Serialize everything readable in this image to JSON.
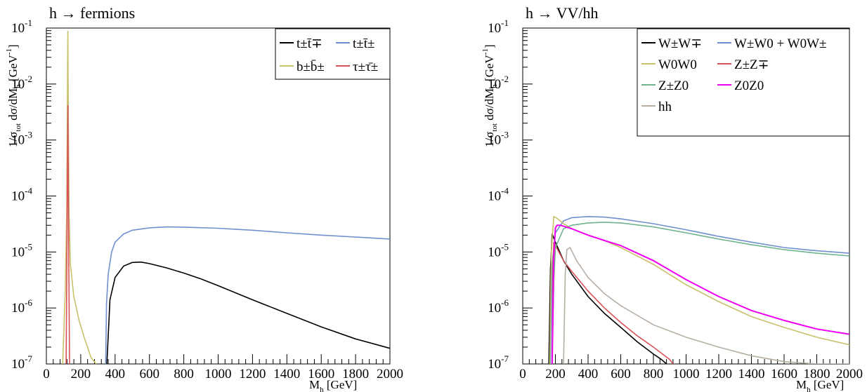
{
  "chart_data": [
    {
      "type": "line",
      "title": "h → fermions",
      "xlabel": "M_h [GeV]",
      "ylabel": "1/σ_tot dσ/dM_h [GeV^-1]",
      "xlim": [
        0,
        2000
      ],
      "ylim": [
        1e-07,
        0.1
      ],
      "yscale": "log",
      "grid": false,
      "legend_position": "top-right",
      "x_ticks": [
        "0",
        "200",
        "400",
        "600",
        "800",
        "1000",
        "1200",
        "1400",
        "1600",
        "1800",
        "2000"
      ],
      "y_ticks": [
        {
          "base": "10",
          "exp": "-7"
        },
        {
          "base": "10",
          "exp": "-6"
        },
        {
          "base": "10",
          "exp": "-5"
        },
        {
          "base": "10",
          "exp": "-4"
        },
        {
          "base": "10",
          "exp": "-3"
        },
        {
          "base": "10",
          "exp": "-2"
        },
        {
          "base": "10",
          "exp": "-1"
        }
      ],
      "series": [
        {
          "name": "t±t̄∓",
          "color": "#000000",
          "x": [
            352,
            370,
            400,
            450,
            500,
            550,
            600,
            700,
            800,
            900,
            1000,
            1200,
            1400,
            1600,
            1800,
            1950,
            2000
          ],
          "y": [
            1e-07,
            1.4e-06,
            3.5e-06,
            5.6e-06,
            6.5e-06,
            6.6e-06,
            6.2e-06,
            5.2e-06,
            4.2e-06,
            3.3e-06,
            2.5e-06,
            1.4e-06,
            8e-07,
            4.6e-07,
            2.8e-07,
            2.1e-07,
            1.9e-07
          ]
        },
        {
          "name": "t±t̄±",
          "color": "#6f8fcf",
          "x": [
            345,
            350,
            360,
            380,
            400,
            450,
            500,
            600,
            700,
            800,
            1000,
            1200,
            1400,
            1600,
            1800,
            2000
          ],
          "y": [
            1e-07,
            1.2e-06,
            4e-06,
            1e-05,
            1.5e-05,
            2.1e-05,
            2.45e-05,
            2.7e-05,
            2.8e-05,
            2.78e-05,
            2.65e-05,
            2.45e-05,
            2.2e-05,
            2e-05,
            1.85e-05,
            1.7e-05
          ]
        },
        {
          "name": "b±b̄±",
          "color": "#c9c06a",
          "x": [
            95,
            110,
            118,
            122,
            124,
            125,
            126,
            128,
            132,
            140,
            160,
            190,
            220,
            260,
            290
          ],
          "y": [
            1e-07,
            2e-06,
            5e-05,
            0.002,
            0.03,
            0.09,
            0.03,
            0.002,
            5e-05,
            6e-06,
            1.6e-06,
            6e-07,
            3e-07,
            1.3e-07,
            1e-07
          ]
        },
        {
          "name": "τ±τ̄±",
          "color": "#d9535a",
          "x": [
            115,
            120,
            123,
            125,
            127,
            130,
            135
          ],
          "y": [
            1e-07,
            1e-05,
            0.0005,
            0.0042,
            0.0005,
            1e-05,
            1e-07
          ]
        }
      ]
    },
    {
      "type": "line",
      "title": "h → VV/hh",
      "xlabel": "M_h [GeV]",
      "ylabel": "1/σ_tot dσ/dM_h [GeV^-1]",
      "xlim": [
        0,
        2000
      ],
      "ylim": [
        1e-07,
        0.1
      ],
      "yscale": "log",
      "grid": false,
      "legend_position": "top-right",
      "x_ticks": [
        "0",
        "200",
        "400",
        "600",
        "800",
        "1000",
        "1200",
        "1400",
        "1600",
        "1800",
        "2000"
      ],
      "y_ticks": [
        {
          "base": "10",
          "exp": "-7"
        },
        {
          "base": "10",
          "exp": "-6"
        },
        {
          "base": "10",
          "exp": "-5"
        },
        {
          "base": "10",
          "exp": "-4"
        },
        {
          "base": "10",
          "exp": "-3"
        },
        {
          "base": "10",
          "exp": "-2"
        },
        {
          "base": "10",
          "exp": "-1"
        }
      ],
      "series": [
        {
          "name": "W±W∓",
          "color": "#000000",
          "x": [
            160,
            170,
            180,
            200,
            250,
            300,
            400,
            500,
            600,
            700,
            800,
            850,
            880
          ],
          "y": [
            1e-07,
            5e-06,
            2.1e-05,
            1.5e-05,
            7e-06,
            4e-06,
            1.6e-06,
            8e-07,
            4.5e-07,
            2.5e-07,
            1.5e-07,
            1.2e-07,
            1e-07
          ]
        },
        {
          "name": "W±W0 + W0W±",
          "color": "#6f8fcf",
          "x": [
            170,
            180,
            200,
            250,
            300,
            400,
            500,
            600,
            800,
            1000,
            1200,
            1400,
            1600,
            1800,
            2000
          ],
          "y": [
            1e-07,
            6e-06,
            2.2e-05,
            3.6e-05,
            4.1e-05,
            4.3e-05,
            4.2e-05,
            3.9e-05,
            3.2e-05,
            2.5e-05,
            1.9e-05,
            1.5e-05,
            1.2e-05,
            1.05e-05,
            9.5e-06
          ]
        },
        {
          "name": "W0W0",
          "color": "#c9c06a",
          "x": [
            165,
            175,
            190,
            210,
            250,
            300,
            400,
            500,
            600,
            800,
            1000,
            1200,
            1400,
            1600,
            1800,
            2000
          ],
          "y": [
            1e-07,
            1e-05,
            4.3e-05,
            4e-05,
            3.2e-05,
            2.6e-05,
            2e-05,
            1.6e-05,
            1.2e-05,
            6e-06,
            2.6e-06,
            1.3e-06,
            7e-07,
            4.5e-07,
            3e-07,
            2.2e-07
          ]
        },
        {
          "name": "Z±Z∓",
          "color": "#d9535a",
          "x": [
            180,
            185,
            190,
            200,
            250,
            300,
            400,
            500,
            600,
            700,
            800,
            900,
            920
          ],
          "y": [
            1e-07,
            5e-06,
            1.5e-05,
            1.3e-05,
            7e-06,
            4.5e-06,
            2e-06,
            1e-06,
            5.5e-07,
            3.2e-07,
            2e-07,
            1.2e-07,
            1e-07
          ]
        },
        {
          "name": "Z±Z0",
          "color": "#6fb38f",
          "x": [
            180,
            190,
            200,
            250,
            300,
            400,
            500,
            600,
            800,
            1000,
            1200,
            1400,
            1600,
            1800,
            2000
          ],
          "y": [
            1e-07,
            3e-06,
            1.2e-05,
            2.6e-05,
            3e-05,
            3.3e-05,
            3.4e-05,
            3.3e-05,
            2.8e-05,
            2.2e-05,
            1.7e-05,
            1.35e-05,
            1.1e-05,
            9.5e-06,
            8.5e-06
          ]
        },
        {
          "name": "Z0Z0",
          "color": "#ee00ee",
          "x": [
            180,
            190,
            200,
            210,
            230,
            300,
            400,
            500,
            600,
            800,
            1000,
            1200,
            1400,
            1600,
            1800,
            2000
          ],
          "y": [
            1e-07,
            8e-06,
            2.7e-05,
            3e-05,
            3e-05,
            2.6e-05,
            2e-05,
            1.6e-05,
            1.3e-05,
            7e-06,
            3.2e-06,
            1.6e-06,
            9e-07,
            6e-07,
            4.2e-07,
            3.4e-07
          ]
        },
        {
          "name": "hh",
          "color": "#b7aea4",
          "x": [
            250,
            260,
            270,
            290,
            330,
            400,
            500,
            600,
            800,
            1000,
            1200,
            1400,
            1600,
            1800,
            2000
          ],
          "y": [
            1e-07,
            4e-06,
            1.1e-05,
            1.2e-05,
            7e-06,
            3.5e-06,
            1.8e-06,
            1.1e-06,
            5e-07,
            3e-07,
            2e-07,
            1.4e-07,
            1.1e-07,
            1e-07,
            1e-07
          ]
        }
      ]
    }
  ]
}
